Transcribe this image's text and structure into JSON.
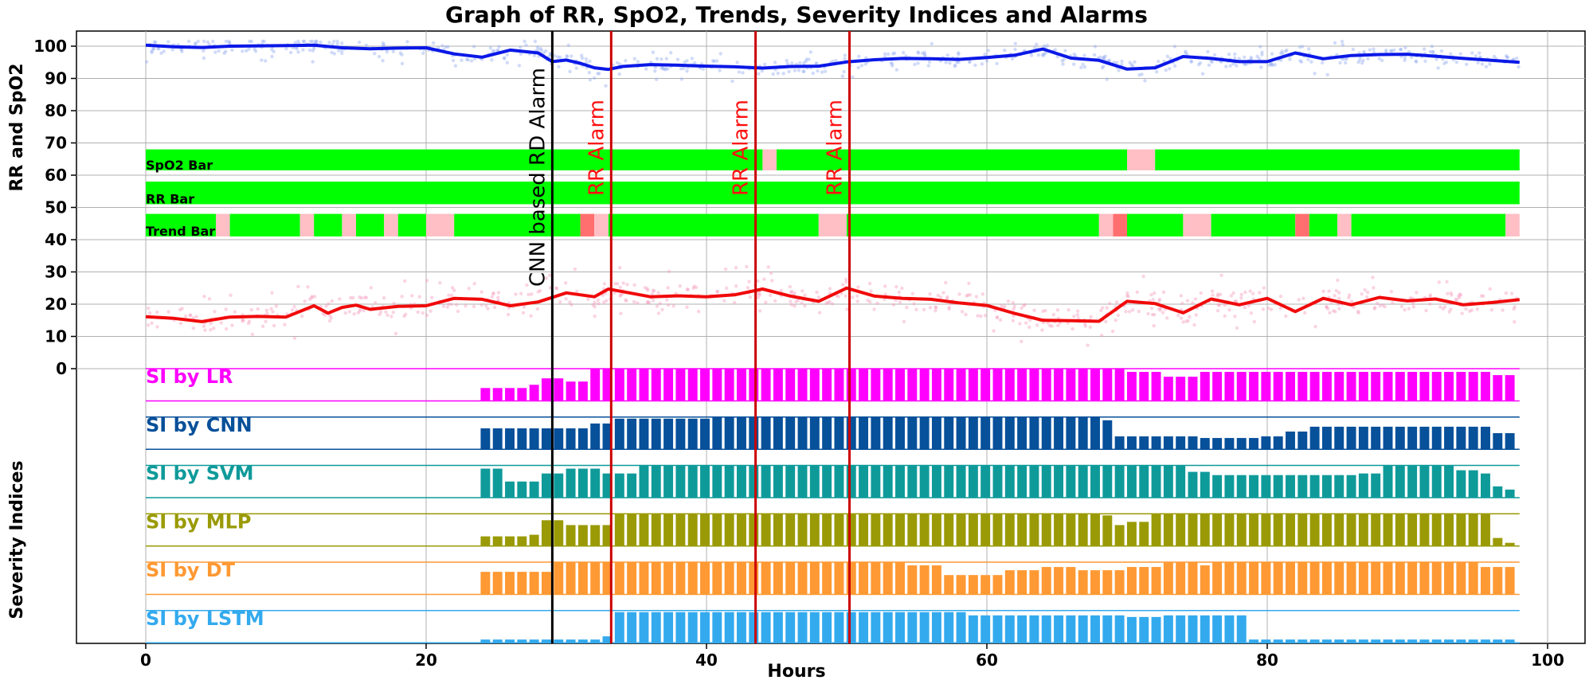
{
  "chart_data": {
    "type": "line",
    "title": "Graph of RR, SpO2, Trends, Severity Indices and Alarms",
    "xlabel": "Hours",
    "ylabel_upper": "RR and SpO2",
    "ylabel_lower": "Severity Indices",
    "xlim": [
      -5,
      101
    ],
    "ylim": [
      -85,
      104
    ],
    "grid": true,
    "x_ticks": [
      0,
      20,
      40,
      60,
      80,
      100
    ],
    "y_ticks": [
      0,
      10,
      20,
      30,
      40,
      50,
      60,
      70,
      80,
      90,
      100
    ],
    "series": [
      {
        "name": "SpO2",
        "color": "#0a18e6",
        "x": [
          0,
          2,
          4,
          6,
          8,
          10,
          12,
          14,
          16,
          18,
          20,
          22,
          24,
          26,
          28,
          29,
          30,
          31,
          32,
          33,
          34,
          36,
          38,
          40,
          42,
          44,
          46,
          48,
          50,
          52,
          54,
          56,
          58,
          60,
          62,
          64,
          66,
          68,
          70,
          72,
          74,
          76,
          78,
          80,
          82,
          84,
          86,
          88,
          90,
          92,
          94,
          96,
          98
        ],
        "values": [
          100.3,
          99.8,
          99.6,
          100,
          100.1,
          100.2,
          100.3,
          99.5,
          99.2,
          99.4,
          99.5,
          97.6,
          96.6,
          98.8,
          97.9,
          95.2,
          95.7,
          94.7,
          93.3,
          92.8,
          93.7,
          94.3,
          94.1,
          93.8,
          93.6,
          93.2,
          93.7,
          93.8,
          95.1,
          95.8,
          96.2,
          96.1,
          95.9,
          96.5,
          97.2,
          99.1,
          96.3,
          95.6,
          92.9,
          93.3,
          96.8,
          96.2,
          95.2,
          95.2,
          97.9,
          96.1,
          97.1,
          97.4,
          97.5,
          96.9,
          96.2,
          95.6,
          95.0
        ]
      },
      {
        "name": "RR",
        "color": "#f00a0a",
        "x": [
          0,
          2,
          4,
          6,
          8,
          10,
          12,
          13,
          14,
          15,
          16,
          18,
          20,
          22,
          24,
          26,
          28,
          30,
          32,
          33,
          34,
          36,
          38,
          40,
          42,
          44,
          46,
          48,
          50,
          52,
          54,
          56,
          58,
          60,
          62,
          64,
          66,
          68,
          70,
          72,
          74,
          76,
          78,
          80,
          82,
          84,
          86,
          88,
          90,
          92,
          94,
          96,
          98
        ],
        "values": [
          16.1,
          15.6,
          14.6,
          16,
          16.2,
          16,
          19.5,
          17.2,
          19,
          19.7,
          18.4,
          19.3,
          19.5,
          21.8,
          21.5,
          19.5,
          20.7,
          23.5,
          22.3,
          24.7,
          23.9,
          22.3,
          22.6,
          22.3,
          22.9,
          24.7,
          22.5,
          20.9,
          25,
          22.5,
          21.8,
          21.5,
          20.4,
          19.6,
          17.1,
          15,
          14.9,
          14.7,
          20.9,
          20.2,
          17.3,
          21.6,
          19.8,
          21.8,
          17.7,
          21.8,
          19.8,
          22.1,
          21,
          21.6,
          19.8,
          20.5,
          21.4
        ]
      }
    ],
    "bars": {
      "green": "#00ff00",
      "pink": "#ffbfc5",
      "red": "#ff6f6f",
      "rows": [
        {
          "label": "SpO2 Bar",
          "y_bottom": 61.5,
          "y_top": 68,
          "segments": [
            [
              0,
              44,
              "green"
            ],
            [
              44,
              45,
              "pink"
            ],
            [
              45,
              70,
              "green"
            ],
            [
              70,
              72,
              "pink"
            ],
            [
              72,
              98,
              "green"
            ]
          ]
        },
        {
          "label": "RR Bar",
          "y_bottom": 51,
          "y_top": 58,
          "segments": [
            [
              0,
              98,
              "green"
            ]
          ]
        },
        {
          "label": "Trend Bar",
          "y_bottom": 41,
          "y_top": 48,
          "segments": [
            [
              0,
              5,
              "green"
            ],
            [
              5,
              6,
              "pink"
            ],
            [
              6,
              11,
              "green"
            ],
            [
              11,
              12,
              "pink"
            ],
            [
              12,
              14,
              "green"
            ],
            [
              14,
              15,
              "pink"
            ],
            [
              15,
              17,
              "green"
            ],
            [
              17,
              18,
              "pink"
            ],
            [
              18,
              20,
              "green"
            ],
            [
              20,
              22,
              "pink"
            ],
            [
              22,
              31,
              "green"
            ],
            [
              31,
              32,
              "red"
            ],
            [
              32,
              33,
              "pink"
            ],
            [
              33,
              48,
              "green"
            ],
            [
              48,
              50,
              "pink"
            ],
            [
              50,
              68,
              "green"
            ],
            [
              68,
              69,
              "pink"
            ],
            [
              69,
              70,
              "red"
            ],
            [
              70,
              74,
              "green"
            ],
            [
              74,
              76,
              "pink"
            ],
            [
              76,
              82,
              "green"
            ],
            [
              82,
              83,
              "red"
            ],
            [
              83,
              85,
              "green"
            ],
            [
              85,
              86,
              "pink"
            ],
            [
              86,
              97,
              "green"
            ],
            [
              97,
              98,
              "pink"
            ]
          ]
        }
      ]
    },
    "alarms": [
      {
        "label": "CNN based RD Alarm",
        "x": 29,
        "color": "#000000"
      },
      {
        "label": "RR Alarm",
        "x": 33.2,
        "color": "#cc0000"
      },
      {
        "label": "RR Alarm",
        "x": 43.5,
        "color": "#cc0000"
      },
      {
        "label": "RR Alarm",
        "x": 50.2,
        "color": "#cc0000"
      }
    ],
    "severity_indices": {
      "x_start": 24,
      "x_step": 0.87,
      "n": 85,
      "panels": [
        {
          "label": "SI by LR",
          "color": "#ff00ff",
          "y_top": 0,
          "y_bottom": -10,
          "levels": [
            [
              24,
              0.4
            ],
            [
              27,
              0.5
            ],
            [
              28,
              0.7
            ],
            [
              30,
              0.6
            ],
            [
              31,
              1.0
            ],
            [
              70,
              0.9
            ],
            [
              72,
              0.75
            ],
            [
              75,
              0.9
            ],
            [
              95,
              0.9
            ],
            [
              96,
              0.8
            ]
          ]
        },
        {
          "label": "SI by CNN",
          "color": "#07509a",
          "y_top": -15,
          "y_bottom": -25,
          "levels": [
            [
              24,
              0.65
            ],
            [
              31,
              0.8
            ],
            [
              33,
              0.95
            ],
            [
              40,
              1.0
            ],
            [
              68,
              0.9
            ],
            [
              69,
              0.4
            ],
            [
              75,
              0.35
            ],
            [
              79,
              0.4
            ],
            [
              81,
              0.55
            ],
            [
              83,
              0.7
            ],
            [
              96,
              0.5
            ]
          ]
        },
        {
          "label": "SI by SVM",
          "color": "#0f9a9a",
          "y_top": -30,
          "y_bottom": -40,
          "levels": [
            [
              24,
              0.9
            ],
            [
              25,
              0.5
            ],
            [
              28,
              0.75
            ],
            [
              30,
              0.9
            ],
            [
              32,
              0.75
            ],
            [
              35,
              1.0
            ],
            [
              74,
              0.8
            ],
            [
              76,
              0.7
            ],
            [
              86,
              0.75
            ],
            [
              88,
              1.0
            ],
            [
              93,
              0.85
            ],
            [
              95,
              0.75
            ],
            [
              96,
              0.35
            ],
            [
              97,
              0.25
            ]
          ]
        },
        {
          "label": "SI by MLP",
          "color": "#9a9a07",
          "y_top": -45,
          "y_bottom": -55,
          "levels": [
            [
              24,
              0.3
            ],
            [
              27,
              0.35
            ],
            [
              28,
              0.8
            ],
            [
              30,
              0.65
            ],
            [
              33,
              1.0
            ],
            [
              68,
              0.95
            ],
            [
              69,
              0.65
            ],
            [
              70,
              0.75
            ],
            [
              71,
              1.0
            ],
            [
              95,
              1.0
            ],
            [
              96,
              0.25
            ],
            [
              97,
              0.1
            ]
          ]
        },
        {
          "label": "SI by DT",
          "color": "#ff9933",
          "y_top": -60,
          "y_bottom": -70,
          "levels": [
            [
              24,
              0.7
            ],
            [
              29,
              1.0
            ],
            [
              54,
              0.9
            ],
            [
              57,
              0.6
            ],
            [
              61,
              0.75
            ],
            [
              64,
              0.85
            ],
            [
              66,
              0.75
            ],
            [
              70,
              0.85
            ],
            [
              72,
              1.0
            ],
            [
              75,
              0.9
            ],
            [
              76,
              1.0
            ],
            [
              95,
              0.85
            ],
            [
              97,
              0.85
            ]
          ]
        },
        {
          "label": "SI by LSTM",
          "color": "#33aaee",
          "y_top": -75,
          "y_bottom": -85,
          "levels": [
            [
              24,
              0.1
            ],
            [
              32,
              0.2
            ],
            [
              33,
              0.95
            ],
            [
              43,
              0.95
            ],
            [
              44,
              0.95
            ],
            [
              58,
              0.85
            ],
            [
              70,
              0.8
            ],
            [
              72,
              0.85
            ],
            [
              77.6,
              0.85
            ],
            [
              78,
              0.1
            ]
          ]
        }
      ]
    }
  }
}
